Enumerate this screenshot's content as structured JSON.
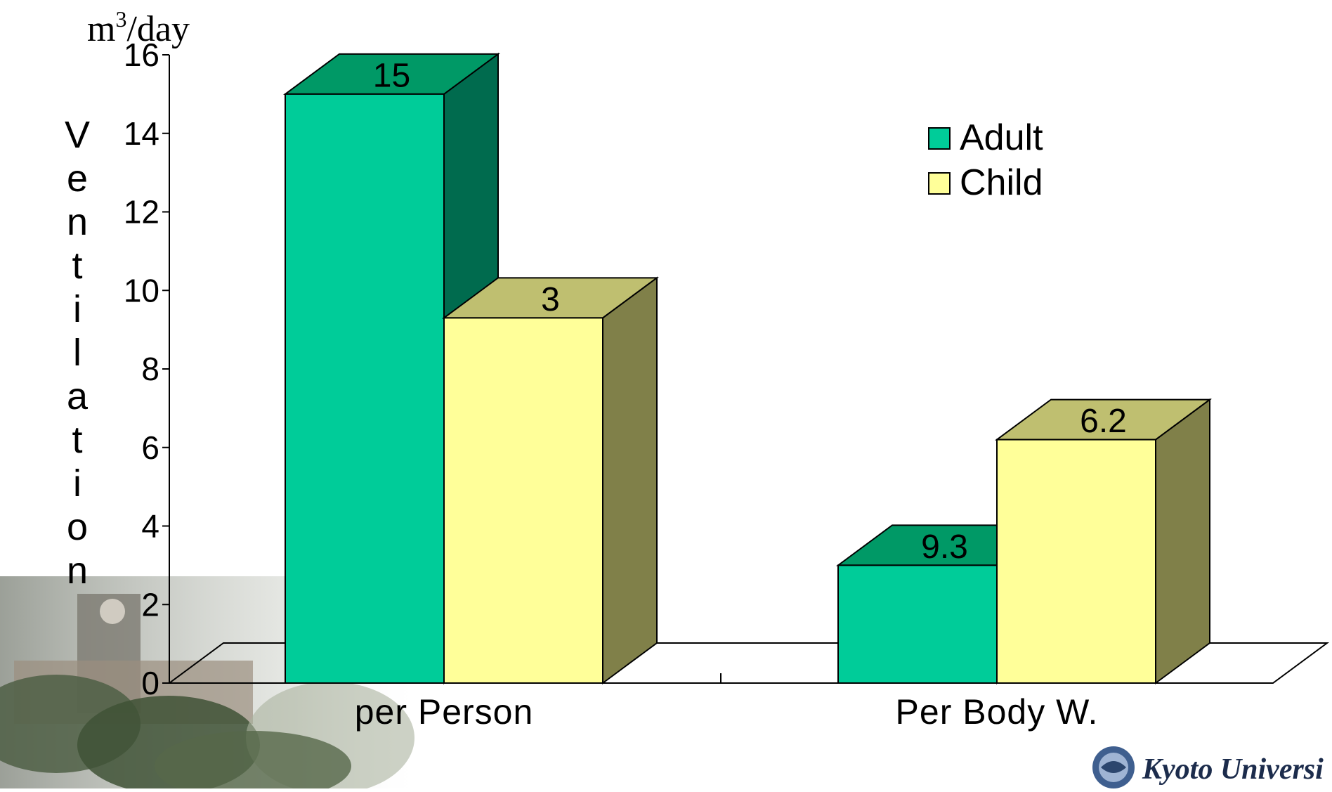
{
  "chart_data": {
    "type": "bar",
    "style": "3d-clustered",
    "categories": [
      "per Person",
      "Per Body W."
    ],
    "series": [
      {
        "name": "Adult",
        "values": [
          15,
          3
        ],
        "color": "#00CC99",
        "top_color": "#009966",
        "side_color": "#006B4E"
      },
      {
        "name": "Child",
        "values": [
          9.3,
          6.2
        ],
        "color": "#FFFF99",
        "top_color": "#BFBF70",
        "side_color": "#808049"
      }
    ],
    "data_labels": [
      "15",
      "3",
      "9.3",
      "6.2"
    ],
    "ylabel": "Ventilation",
    "unit_prefix": "m",
    "unit_sup": "3",
    "unit_suffix": "/day",
    "ylim": [
      0,
      16
    ],
    "yticks": [
      0,
      2,
      4,
      6,
      8,
      10,
      12,
      14,
      16
    ],
    "grid": false,
    "legend_position": "top-right"
  },
  "footer": {
    "logo_text": "Kyoto Universi"
  }
}
